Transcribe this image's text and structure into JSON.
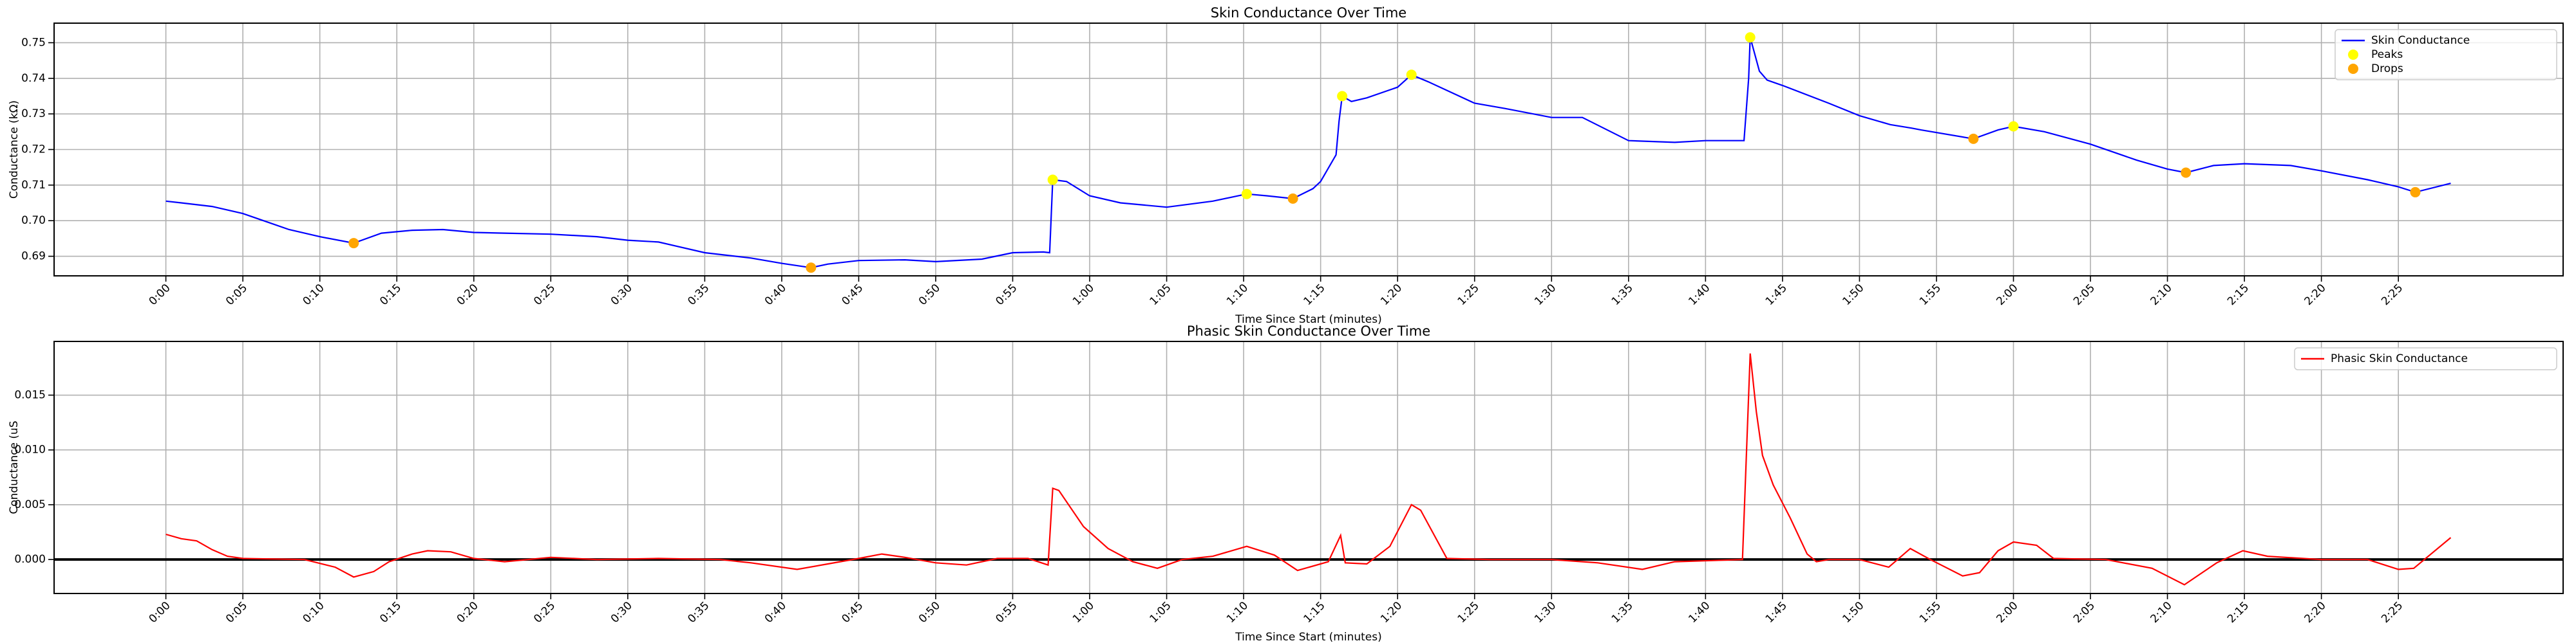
{
  "chart_data": [
    {
      "type": "line",
      "title": "Skin Conductance Over Time",
      "xlabel": "Time Since Start (minutes)",
      "ylabel": "Conductance (kΩ)",
      "xlim": [
        -7.26,
        155.7
      ],
      "ylim": [
        0.6845,
        0.7555
      ],
      "grid": true,
      "legend": "upper right",
      "xticks": [
        {
          "value": 0,
          "label": "0:00"
        },
        {
          "value": 5,
          "label": "0:05"
        },
        {
          "value": 10,
          "label": "0:10"
        },
        {
          "value": 15,
          "label": "0:15"
        },
        {
          "value": 20,
          "label": "0:20"
        },
        {
          "value": 25,
          "label": "0:25"
        },
        {
          "value": 30,
          "label": "0:30"
        },
        {
          "value": 35,
          "label": "0:35"
        },
        {
          "value": 40,
          "label": "0:40"
        },
        {
          "value": 45,
          "label": "0:45"
        },
        {
          "value": 50,
          "label": "0:50"
        },
        {
          "value": 55,
          "label": "0:55"
        },
        {
          "value": 60,
          "label": "1:00"
        },
        {
          "value": 65,
          "label": "1:05"
        },
        {
          "value": 70,
          "label": "1:10"
        },
        {
          "value": 75,
          "label": "1:15"
        },
        {
          "value": 80,
          "label": "1:20"
        },
        {
          "value": 85,
          "label": "1:25"
        },
        {
          "value": 90,
          "label": "1:30"
        },
        {
          "value": 95,
          "label": "1:35"
        },
        {
          "value": 100,
          "label": "1:40"
        },
        {
          "value": 105,
          "label": "1:45"
        },
        {
          "value": 110,
          "label": "1:50"
        },
        {
          "value": 115,
          "label": "1:55"
        },
        {
          "value": 120,
          "label": "2:00"
        },
        {
          "value": 125,
          "label": "2:05"
        },
        {
          "value": 130,
          "label": "2:10"
        },
        {
          "value": 135,
          "label": "2:15"
        },
        {
          "value": 140,
          "label": "2:20"
        },
        {
          "value": 145,
          "label": "2:25"
        }
      ],
      "yticks": [
        0.69,
        {
          "value": 0.7,
          "label": "0.70"
        },
        0.71,
        0.72,
        0.73,
        0.74,
        0.75
      ],
      "series": [
        {
          "name": "Skin Conductance",
          "style": "line",
          "color": "#0000ff",
          "x": [
            0,
            1,
            3,
            5,
            7,
            8,
            10,
            12.2,
            14,
            16,
            18,
            20,
            22,
            25,
            28,
            30,
            32,
            35,
            38,
            40,
            41.9,
            43,
            45,
            48,
            50,
            53,
            55,
            57,
            57.4,
            57.6,
            58.5,
            60,
            62,
            65,
            68,
            70.2,
            71.5,
            73.2,
            74.5,
            75,
            76,
            76.2,
            76.4,
            77,
            78,
            80,
            80.9,
            82,
            85,
            87,
            90,
            92,
            95,
            98,
            100,
            102.5,
            102.8,
            102.9,
            103.5,
            104,
            105,
            108,
            110,
            112,
            113.4,
            114,
            117.4,
            119,
            120,
            122,
            125,
            128,
            130,
            131.2,
            133,
            135,
            138,
            140,
            143,
            145,
            146.1,
            148.4
          ],
          "values": [
            0.7055,
            0.705,
            0.704,
            0.702,
            0.699,
            0.6975,
            0.6955,
            0.6937,
            0.6965,
            0.6973,
            0.6975,
            0.6967,
            0.6965,
            0.6962,
            0.6955,
            0.6945,
            0.694,
            0.691,
            0.6895,
            0.688,
            0.6868,
            0.6878,
            0.6888,
            0.689,
            0.6885,
            0.6892,
            0.691,
            0.6912,
            0.691,
            0.7115,
            0.711,
            0.707,
            0.705,
            0.7038,
            0.7055,
            0.7075,
            0.707,
            0.7062,
            0.709,
            0.711,
            0.7185,
            0.728,
            0.735,
            0.7335,
            0.7345,
            0.7375,
            0.741,
            0.739,
            0.733,
            0.7315,
            0.729,
            0.729,
            0.7225,
            0.722,
            0.7225,
            0.7225,
            0.74,
            0.7515,
            0.742,
            0.7395,
            0.738,
            0.733,
            0.7295,
            0.727,
            0.726,
            0.7255,
            0.723,
            0.7255,
            0.7265,
            0.725,
            0.7215,
            0.717,
            0.7145,
            0.7135,
            0.7155,
            0.716,
            0.7155,
            0.714,
            0.7115,
            0.7095,
            0.708,
            0.7105
          ]
        },
        {
          "name": "Peaks",
          "style": "scatter",
          "color": "#ffff00",
          "x": [
            57.6,
            70.2,
            76.4,
            80.9,
            102.9,
            120.0
          ],
          "values": [
            0.7115,
            0.7075,
            0.735,
            0.741,
            0.7515,
            0.7265
          ]
        },
        {
          "name": "Drops",
          "style": "scatter",
          "color": "#ffa500",
          "x": [
            12.2,
            41.9,
            73.2,
            117.4,
            131.2,
            146.1
          ],
          "values": [
            0.6937,
            0.6868,
            0.7062,
            0.723,
            0.7135,
            0.708
          ]
        }
      ]
    },
    {
      "type": "line",
      "title": "Phasic Skin Conductance Over Time",
      "xlabel": "Time Since Start (minutes)",
      "ylabel": "Conductance (uS",
      "xlim": [
        -7.26,
        155.7
      ],
      "ylim": [
        -0.0031,
        0.0199
      ],
      "grid": true,
      "legend": "upper right",
      "hline": {
        "value": 0,
        "color": "#000000"
      },
      "xticks": [
        {
          "value": 0,
          "label": "0:00"
        },
        {
          "value": 5,
          "label": "0:05"
        },
        {
          "value": 10,
          "label": "0:10"
        },
        {
          "value": 15,
          "label": "0:15"
        },
        {
          "value": 20,
          "label": "0:20"
        },
        {
          "value": 25,
          "label": "0:25"
        },
        {
          "value": 30,
          "label": "0:30"
        },
        {
          "value": 35,
          "label": "0:35"
        },
        {
          "value": 40,
          "label": "0:40"
        },
        {
          "value": 45,
          "label": "0:45"
        },
        {
          "value": 50,
          "label": "0:50"
        },
        {
          "value": 55,
          "label": "0:55"
        },
        {
          "value": 60,
          "label": "1:00"
        },
        {
          "value": 65,
          "label": "1:05"
        },
        {
          "value": 70,
          "label": "1:10"
        },
        {
          "value": 75,
          "label": "1:15"
        },
        {
          "value": 80,
          "label": "1:20"
        },
        {
          "value": 85,
          "label": "1:25"
        },
        {
          "value": 90,
          "label": "1:30"
        },
        {
          "value": 95,
          "label": "1:35"
        },
        {
          "value": 100,
          "label": "1:40"
        },
        {
          "value": 105,
          "label": "1:45"
        },
        {
          "value": 110,
          "label": "1:50"
        },
        {
          "value": 115,
          "label": "1:55"
        },
        {
          "value": 120,
          "label": "2:00"
        },
        {
          "value": 125,
          "label": "2:05"
        },
        {
          "value": 130,
          "label": "2:10"
        },
        {
          "value": 135,
          "label": "2:15"
        },
        {
          "value": 140,
          "label": "2:20"
        },
        {
          "value": 145,
          "label": "2:25"
        }
      ],
      "yticks": [
        {
          "value": 0,
          "label": "0.000"
        },
        {
          "value": 0.005,
          "label": "0.005"
        },
        {
          "value": 0.01,
          "label": "0.010"
        },
        {
          "value": 0.015,
          "label": "0.015"
        }
      ],
      "series": [
        {
          "name": "Phasic Skin Conductance",
          "style": "line",
          "color": "#ff0000",
          "x": [
            0,
            1,
            2,
            3,
            4,
            5,
            9,
            11,
            12.2,
            13.5,
            14.5,
            16,
            17,
            18.5,
            20,
            22,
            25,
            28,
            32,
            36,
            38,
            41,
            43,
            45,
            46.5,
            48,
            50,
            52,
            54,
            56,
            57.3,
            57.6,
            58,
            59.6,
            61.2,
            62.8,
            64.4,
            66,
            68,
            70.2,
            72,
            73.5,
            75.5,
            76.3,
            76.6,
            78,
            79.5,
            80.9,
            81.5,
            83.2,
            86,
            90,
            93,
            95.9,
            98,
            102.4,
            102.9,
            103.3,
            103.7,
            104.4,
            105.5,
            106.6,
            107.2,
            108,
            110,
            111.9,
            113.3,
            114.6,
            116.7,
            117.8,
            119,
            120,
            121.5,
            122.6,
            126,
            129,
            131.1,
            133.2,
            134.9,
            136.5,
            140,
            143,
            145,
            146,
            148.4
          ],
          "values": [
            0.0023,
            0.0019,
            0.0017,
            0.0009,
            0.0003,
            0.0001,
            0,
            -0.0007,
            -0.0016,
            -0.0011,
            -0.0002,
            0.0005,
            0.0008,
            0.0007,
            0.0001,
            -0.0002,
            0.0002,
            0,
            0.0001,
            0,
            -0.0003,
            -0.0009,
            -0.0004,
            0.0001,
            0.0005,
            0.0002,
            -0.0003,
            -0.0005,
            0.0001,
            0.0001,
            -0.0005,
            0.0065,
            0.0063,
            0.003,
            0.001,
            -0.0002,
            -0.0008,
            0,
            0.0003,
            0.0012,
            0.0004,
            -0.001,
            -0.0002,
            0.0022,
            -0.0003,
            -0.0004,
            0.0012,
            0.005,
            0.0045,
            0.0001,
            0,
            0,
            -0.0003,
            -0.0009,
            -0.0002,
            0,
            0.0188,
            0.0135,
            0.0095,
            0.0068,
            0.0038,
            0.0005,
            -0.0002,
            0,
            0,
            -0.0007,
            0.001,
            0,
            -0.0015,
            -0.0012,
            0.0008,
            0.0016,
            0.0013,
            0.0001,
            0,
            -0.0008,
            -0.0023,
            -0.0003,
            0.0008,
            0.0003,
            0,
            0,
            -0.0009,
            -0.0008,
            0.002
          ]
        }
      ]
    }
  ]
}
